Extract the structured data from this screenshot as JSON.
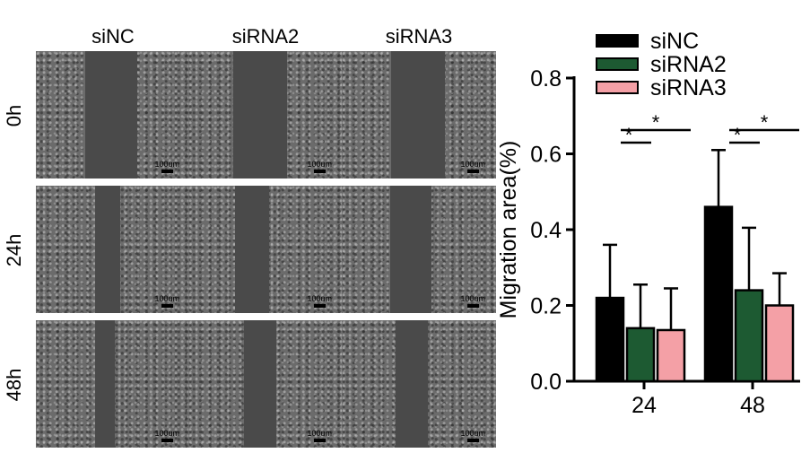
{
  "micrographs": {
    "columns": [
      "siNC",
      "siRNA2",
      "siRNA3"
    ],
    "rows": [
      "0h",
      "24h",
      "48h"
    ],
    "scale_label": "100um"
  },
  "chart_data": {
    "type": "bar",
    "categories": [
      "24",
      "48"
    ],
    "series": [
      {
        "name": "siNC",
        "values": [
          0.22,
          0.46
        ],
        "errors": [
          0.14,
          0.15
        ],
        "color": "#000000"
      },
      {
        "name": "siRNA2",
        "values": [
          0.14,
          0.24
        ],
        "errors": [
          0.115,
          0.165
        ],
        "color": "#1d5a32"
      },
      {
        "name": "siRNA3",
        "values": [
          0.135,
          0.2
        ],
        "errors": [
          0.11,
          0.085
        ],
        "color": "#f4a0a6"
      }
    ],
    "ylabel": "Migration area(%)",
    "ylim": [
      0,
      0.8
    ],
    "yticks": [
      "0.0",
      "0.2",
      "0.4",
      "0.6",
      "0.8"
    ],
    "legend_position": "top-right",
    "significance": [
      {
        "group": "24",
        "from": "siNC",
        "to": "siRNA2",
        "label": "*"
      },
      {
        "group": "24",
        "from": "siNC",
        "to": "siRNA3",
        "label": "*"
      },
      {
        "group": "48",
        "from": "siNC",
        "to": "siRNA2",
        "label": "*"
      },
      {
        "group": "48",
        "from": "siNC",
        "to": "siRNA3",
        "label": "*"
      }
    ]
  }
}
